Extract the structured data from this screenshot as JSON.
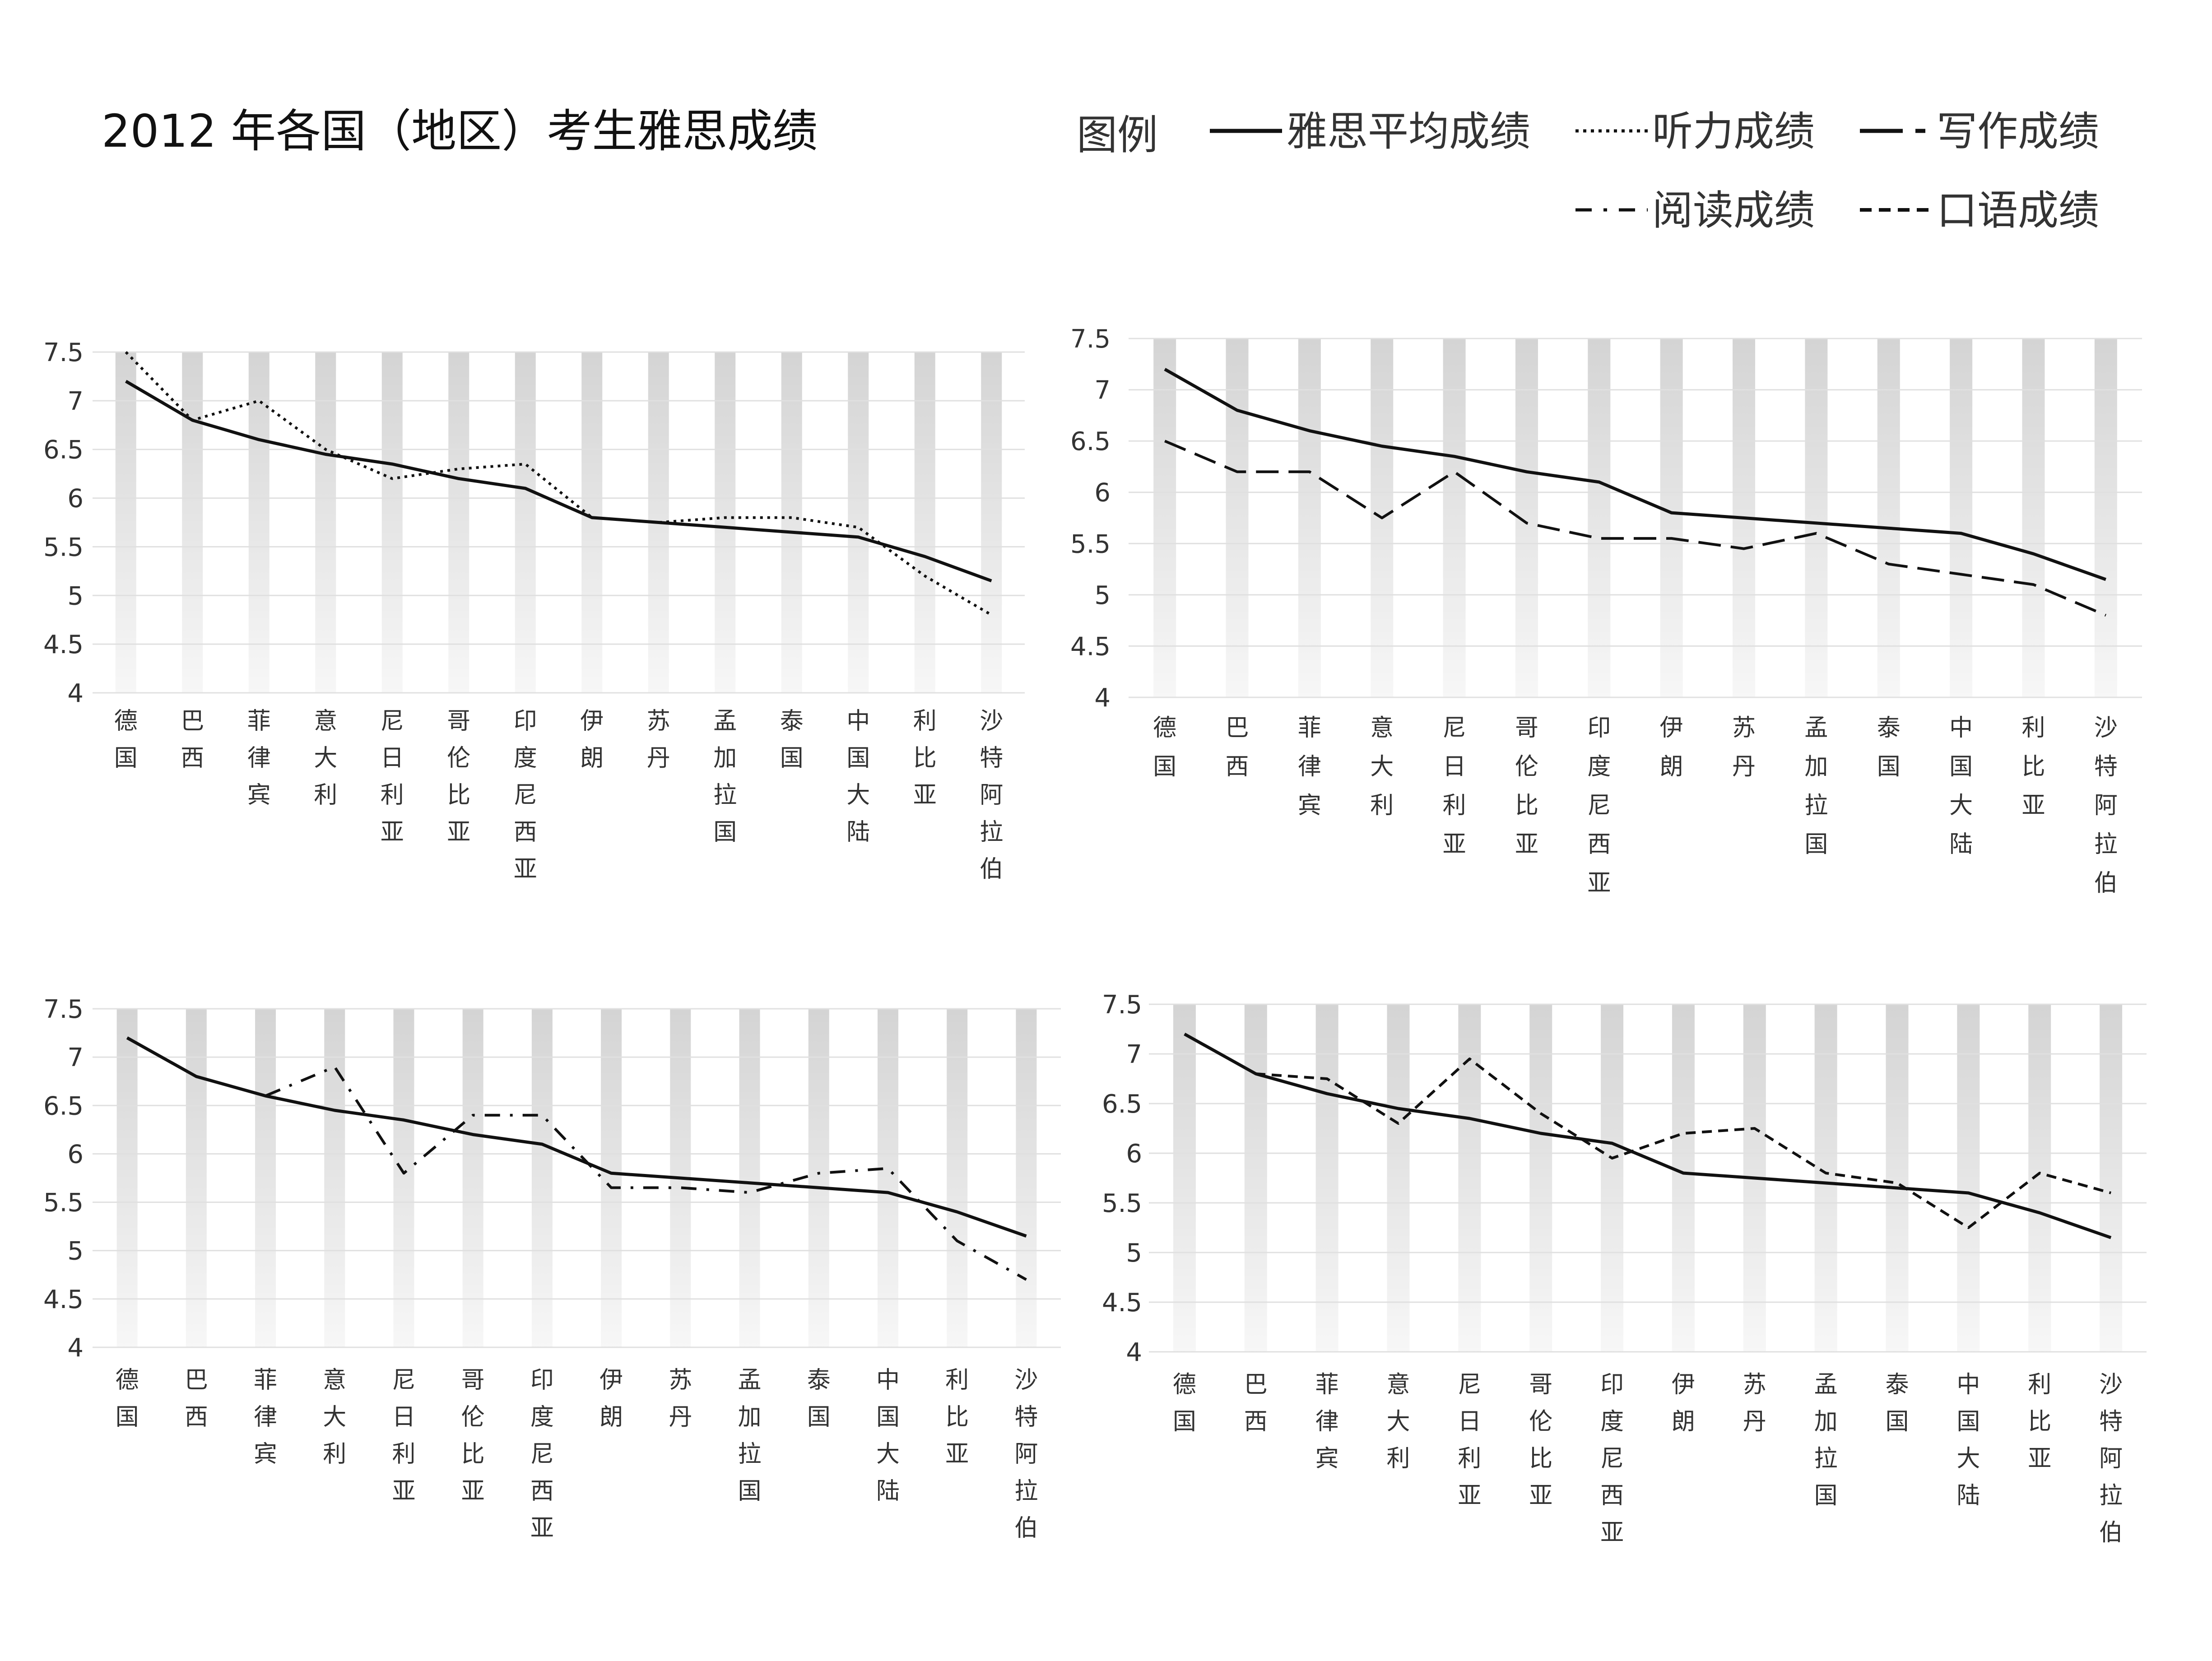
{
  "title": "2012 年各国（地区）考生雅思成绩",
  "legend": {
    "label": "图例",
    "items": [
      {
        "key": "overall",
        "label": "雅思平均成绩",
        "style": "solid"
      },
      {
        "key": "listening",
        "label": "听力成绩",
        "style": "dotted"
      },
      {
        "key": "writing",
        "label": "写作成绩",
        "style": "longdash"
      },
      {
        "key": "reading",
        "label": "阅读成绩",
        "style": "dashdot"
      },
      {
        "key": "speaking",
        "label": "口语成绩",
        "style": "shortdash"
      }
    ]
  },
  "colors": {
    "line": "#111111",
    "band_top": "#d4d4d4",
    "band_bottom": "#f7f7f7",
    "grid": "#e0e0e0"
  },
  "chart_data": [
    {
      "type": "line",
      "panel": "top-left",
      "categories": [
        "德国",
        "巴西",
        "菲律宾",
        "意大利",
        "尼日利亚",
        "哥伦比亚",
        "印度尼西亚",
        "伊朗",
        "苏丹",
        "孟加拉国",
        "泰国",
        "中国大陆",
        "利比亚",
        "沙特阿拉伯"
      ],
      "ylim": [
        4,
        7.5
      ],
      "yticks": [
        "4",
        "4.5",
        "5",
        "5.5",
        "6",
        "6.5",
        "7",
        "7.5"
      ],
      "series": [
        {
          "name": "雅思平均成绩",
          "style": "solid",
          "values": [
            7.2,
            6.8,
            6.6,
            6.45,
            6.35,
            6.2,
            6.1,
            5.8,
            5.75,
            5.7,
            5.65,
            5.6,
            5.4,
            5.15
          ]
        },
        {
          "name": "听力成绩",
          "style": "dotted",
          "values": [
            7.5,
            6.8,
            7.0,
            6.5,
            6.2,
            6.3,
            6.35,
            5.8,
            5.75,
            5.8,
            5.8,
            5.7,
            5.2,
            4.8
          ]
        }
      ]
    },
    {
      "type": "line",
      "panel": "top-right",
      "categories": [
        "德国",
        "巴西",
        "菲律宾",
        "意大利",
        "尼日利亚",
        "哥伦比亚",
        "印度尼西亚",
        "伊朗",
        "苏丹",
        "孟加拉国",
        "泰国",
        "中国大陆",
        "利比亚",
        "沙特阿拉伯"
      ],
      "ylim": [
        4,
        7.5
      ],
      "yticks": [
        "4",
        "4.5",
        "5",
        "5.5",
        "6",
        "6.5",
        "7",
        "7.5"
      ],
      "series": [
        {
          "name": "雅思平均成绩",
          "style": "solid",
          "values": [
            7.2,
            6.8,
            6.6,
            6.45,
            6.35,
            6.2,
            6.1,
            5.8,
            5.75,
            5.7,
            5.65,
            5.6,
            5.4,
            5.15
          ]
        },
        {
          "name": "写作成绩",
          "style": "longdash",
          "values": [
            6.5,
            6.2,
            6.2,
            5.75,
            6.2,
            5.7,
            5.55,
            5.55,
            5.45,
            5.6,
            5.3,
            5.2,
            5.1,
            4.8
          ]
        }
      ]
    },
    {
      "type": "line",
      "panel": "bottom-left",
      "categories": [
        "德国",
        "巴西",
        "菲律宾",
        "意大利",
        "尼日利亚",
        "哥伦比亚",
        "印度尼西亚",
        "伊朗",
        "苏丹",
        "孟加拉国",
        "泰国",
        "中国大陆",
        "利比亚",
        "沙特阿拉伯"
      ],
      "ylim": [
        4,
        7.5
      ],
      "yticks": [
        "4",
        "4.5",
        "5",
        "5.5",
        "6",
        "6.5",
        "7",
        "7.5"
      ],
      "series": [
        {
          "name": "雅思平均成绩",
          "style": "solid",
          "values": [
            7.2,
            6.8,
            6.6,
            6.45,
            6.35,
            6.2,
            6.1,
            5.8,
            5.75,
            5.7,
            5.65,
            5.6,
            5.4,
            5.15
          ]
        },
        {
          "name": "阅读成绩",
          "style": "dashdot",
          "values": [
            7.2,
            6.8,
            6.6,
            6.9,
            5.8,
            6.4,
            6.4,
            5.65,
            5.65,
            5.6,
            5.8,
            5.85,
            5.1,
            4.7
          ]
        }
      ]
    },
    {
      "type": "line",
      "panel": "bottom-right",
      "categories": [
        "德国",
        "巴西",
        "菲律宾",
        "意大利",
        "尼日利亚",
        "哥伦比亚",
        "印度尼西亚",
        "伊朗",
        "苏丹",
        "孟加拉国",
        "泰国",
        "中国大陆",
        "利比亚",
        "沙特阿拉伯"
      ],
      "ylim": [
        4,
        7.5
      ],
      "yticks": [
        "4",
        "4.5",
        "5",
        "5.5",
        "6",
        "6.5",
        "7",
        "7.5"
      ],
      "series": [
        {
          "name": "雅思平均成绩",
          "style": "solid",
          "values": [
            7.2,
            6.8,
            6.6,
            6.45,
            6.35,
            6.2,
            6.1,
            5.8,
            5.75,
            5.7,
            5.65,
            5.6,
            5.4,
            5.15
          ]
        },
        {
          "name": "口语成绩",
          "style": "shortdash",
          "values": [
            7.2,
            6.8,
            6.75,
            6.3,
            6.95,
            6.4,
            5.95,
            6.2,
            6.25,
            5.8,
            5.7,
            5.25,
            5.8,
            5.6
          ]
        }
      ]
    }
  ]
}
